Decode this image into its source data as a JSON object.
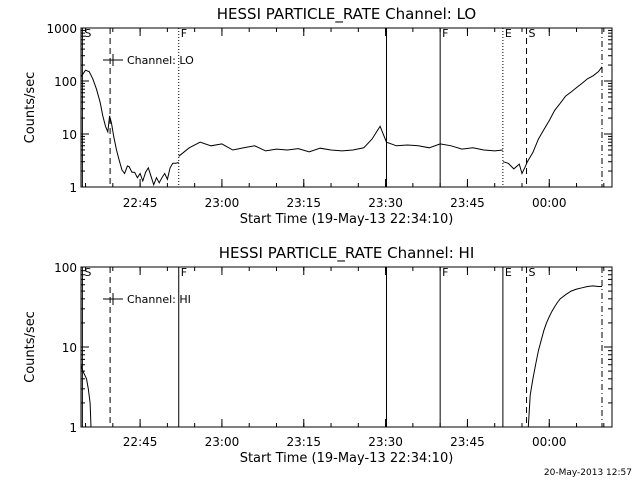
{
  "chart_data": [
    {
      "type": "line",
      "title": "HESSI PARTICLE_RATE Channel: LO",
      "xlabel": "Start Time (19-May-13 22:34:10)",
      "ylabel": "Counts/sec",
      "yscale": "log",
      "ylim": [
        1,
        1000
      ],
      "ytick_labels": [
        "1",
        "10",
        "100",
        "1000"
      ],
      "xlim": [
        "22:34:10",
        "00:11:30"
      ],
      "xtick_labels": [
        "22:45",
        "23:00",
        "23:15",
        "23:30",
        "23:45",
        "00:00"
      ],
      "legend": {
        "label": "Channel: LO",
        "placement": "top-left"
      },
      "markers": [
        {
          "time": "22:34:25",
          "label": "S",
          "style": "solid"
        },
        {
          "time": "22:39:30",
          "label": "",
          "style": "dashed"
        },
        {
          "time": "22:52:05",
          "label": "F",
          "style": "dotted"
        },
        {
          "time": "23:30:10",
          "label": "",
          "style": "solid"
        },
        {
          "time": "23:40:00",
          "label": "F",
          "style": "solid"
        },
        {
          "time": "23:51:30",
          "label": "E",
          "style": "dotted"
        },
        {
          "time": "23:55:50",
          "label": "S",
          "style": "dashed"
        },
        {
          "time": "00:09:40",
          "label": "",
          "style": "dashdot"
        }
      ],
      "series": [
        {
          "x": [
            "22:34:10",
            "22:35:00",
            "22:35:40",
            "22:36:20",
            "22:37:00",
            "22:37:40",
            "22:38:10",
            "22:38:40",
            "22:39:05",
            "22:39:25",
            "22:39:45",
            "22:40:10",
            "22:40:40",
            "22:41:10",
            "22:41:40",
            "22:42:10",
            "22:42:40",
            "22:43:00",
            "22:43:30",
            "22:44:00",
            "22:44:30",
            "22:45:00",
            "22:45:30",
            "22:46:00",
            "22:46:30",
            "22:47:00",
            "22:47:30",
            "22:48:00",
            "22:48:30",
            "22:49:00",
            "22:49:30",
            "22:50:00",
            "22:50:30",
            "22:51:00",
            "22:51:30",
            "22:52:05"
          ],
          "y": [
            120,
            160,
            150,
            110,
            70,
            40,
            22,
            14,
            11,
            22,
            16,
            9,
            5,
            3.2,
            2.1,
            1.8,
            2.5,
            2.4,
            1.9,
            1.9,
            1.5,
            1.8,
            1.3,
            1.9,
            2.3,
            1.6,
            1.1,
            1.5,
            1.2,
            1.5,
            1.8,
            1.4,
            2.3,
            2.8,
            2.8,
            2.9
          ]
        },
        {
          "x": [
            "22:52:05",
            "22:54:00",
            "22:56:00",
            "22:58:00",
            "23:00:00",
            "23:02:00",
            "23:04:00",
            "23:06:00",
            "23:08:00",
            "23:10:00",
            "23:12:00",
            "23:14:00",
            "23:16:00",
            "23:18:00",
            "23:20:00",
            "23:22:00",
            "23:24:00",
            "23:26:00",
            "23:27:30",
            "23:29:00",
            "23:30:10",
            "23:32:00",
            "23:34:00",
            "23:36:00",
            "23:38:00",
            "23:40:00",
            "23:42:00",
            "23:44:00",
            "23:46:00",
            "23:48:00",
            "23:50:00",
            "23:51:30"
          ],
          "y": [
            3.8,
            5.5,
            7,
            6,
            6.5,
            5,
            5.5,
            6,
            4.8,
            5.2,
            5,
            5.3,
            4.6,
            5.4,
            5,
            4.8,
            5,
            5.5,
            8,
            14,
            7,
            6,
            6.2,
            6,
            5.5,
            6.5,
            6,
            5.2,
            5.5,
            5,
            4.8,
            5
          ]
        },
        {
          "x": [
            "23:51:30",
            "23:52:30",
            "23:53:30",
            "23:54:30",
            "23:55:00",
            "23:55:30",
            "23:56:00",
            "23:57:00",
            "23:58:00",
            "23:59:00",
            "00:00:00",
            "00:01:00",
            "00:02:00",
            "00:03:00",
            "00:04:00",
            "00:05:00",
            "00:06:00",
            "00:07:00",
            "00:08:00",
            "00:09:00",
            "00:09:40"
          ],
          "y": [
            3,
            2.8,
            2.2,
            2.7,
            1.8,
            2.3,
            3,
            4.5,
            8,
            12,
            18,
            28,
            38,
            52,
            62,
            75,
            90,
            110,
            125,
            150,
            185
          ]
        }
      ]
    },
    {
      "type": "line",
      "title": "HESSI PARTICLE_RATE Channel: HI",
      "xlabel": "Start Time (19-May-13 22:34:10)",
      "ylabel": "Counts/sec",
      "yscale": "log",
      "ylim": [
        1,
        100
      ],
      "ytick_labels": [
        "1",
        "10",
        "100"
      ],
      "xlim": [
        "22:34:10",
        "00:11:30"
      ],
      "xtick_labels": [
        "22:45",
        "23:00",
        "23:15",
        "23:30",
        "23:45",
        "00:00"
      ],
      "legend": {
        "label": "Channel: HI",
        "placement": "top-left"
      },
      "markers": [
        {
          "time": "22:34:25",
          "label": "S",
          "style": "solid"
        },
        {
          "time": "22:39:30",
          "label": "",
          "style": "dashed"
        },
        {
          "time": "22:52:05",
          "label": "F",
          "style": "solid"
        },
        {
          "time": "23:30:10",
          "label": "",
          "style": "solid"
        },
        {
          "time": "23:40:00",
          "label": "F",
          "style": "solid"
        },
        {
          "time": "23:51:30",
          "label": "E",
          "style": "solid"
        },
        {
          "time": "23:55:50",
          "label": "S",
          "style": "dashed"
        },
        {
          "time": "00:09:40",
          "label": "",
          "style": "dashdot"
        }
      ],
      "series": [
        {
          "x": [
            "22:34:10",
            "22:34:30",
            "22:34:50",
            "22:35:10",
            "22:35:30",
            "22:35:50",
            "22:36:00"
          ],
          "y": [
            6,
            5,
            4.5,
            4,
            3,
            2,
            1
          ]
        },
        {
          "x": [
            "23:56:10",
            "23:56:30",
            "23:57:00",
            "23:57:30",
            "23:58:00",
            "23:58:30",
            "23:59:00",
            "23:59:30",
            "00:00:00",
            "00:00:30",
            "00:01:00",
            "00:01:30",
            "00:02:00",
            "00:03:00",
            "00:04:00",
            "00:05:00",
            "00:06:00",
            "00:07:00",
            "00:08:00",
            "00:09:00",
            "00:09:40"
          ],
          "y": [
            1,
            2.5,
            4,
            6,
            9,
            12,
            16,
            20,
            24,
            28,
            32,
            36,
            40,
            45,
            50,
            53,
            55,
            57,
            58,
            57,
            57
          ]
        }
      ]
    }
  ],
  "footer": {
    "timestamp": "20-May-2013 12:57"
  }
}
